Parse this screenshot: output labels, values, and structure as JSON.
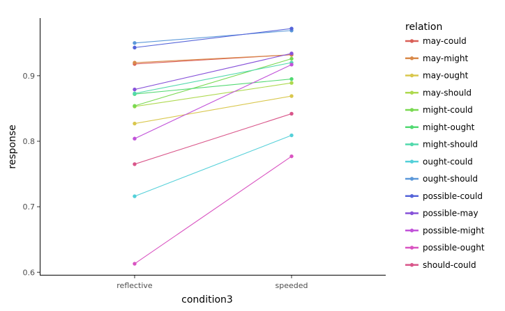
{
  "chart_data": {
    "type": "line",
    "xlabel": "condition3",
    "ylabel": "response",
    "categories": [
      "reflective",
      "speeded"
    ],
    "ylim": [
      0.595,
      0.988
    ],
    "yticks": [
      0.6,
      0.7,
      0.8,
      0.9
    ],
    "ytick_labels": [
      "0.6",
      "0.7",
      "0.8",
      "0.9"
    ],
    "grid": false,
    "legend": {
      "title": "relation",
      "position": "right"
    },
    "series": [
      {
        "name": "may-could",
        "color": "#D95F57",
        "values": [
          0.918,
          0.932
        ]
      },
      {
        "name": "may-might",
        "color": "#D98A4A",
        "values": [
          0.92,
          0.932
        ]
      },
      {
        "name": "may-ought",
        "color": "#D9C74D",
        "values": [
          0.827,
          0.869
        ]
      },
      {
        "name": "may-should",
        "color": "#AED94F",
        "values": [
          0.853,
          0.889
        ]
      },
      {
        "name": "might-could",
        "color": "#79D951",
        "values": [
          0.854,
          0.926
        ]
      },
      {
        "name": "might-ought",
        "color": "#52D972",
        "values": [
          0.872,
          0.895
        ]
      },
      {
        "name": "might-should",
        "color": "#52D9AC",
        "values": [
          0.873,
          0.92
        ]
      },
      {
        "name": "ought-could",
        "color": "#54D0D9",
        "values": [
          0.716,
          0.809
        ]
      },
      {
        "name": "ought-should",
        "color": "#5B98D9",
        "values": [
          0.95,
          0.969
        ]
      },
      {
        "name": "possible-could",
        "color": "#5564D9",
        "values": [
          0.943,
          0.972
        ]
      },
      {
        "name": "possible-may",
        "color": "#8752D9",
        "values": [
          0.879,
          0.934
        ]
      },
      {
        "name": "possible-might",
        "color": "#C152D9",
        "values": [
          0.804,
          0.917
        ]
      },
      {
        "name": "possible-ought",
        "color": "#D953C1",
        "values": [
          0.613,
          0.777
        ]
      },
      {
        "name": "should-could",
        "color": "#D9568A",
        "values": [
          0.765,
          0.842
        ]
      }
    ]
  }
}
